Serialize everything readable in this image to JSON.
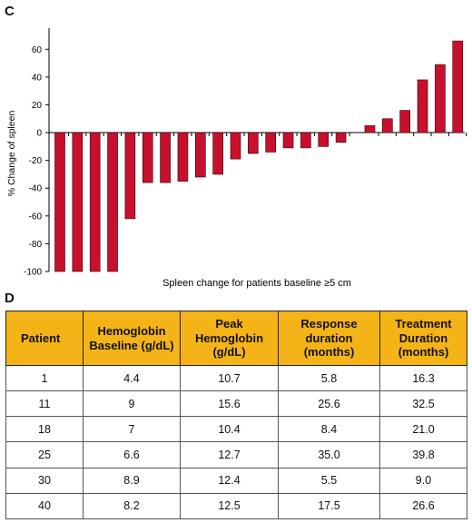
{
  "panel_c": {
    "letter": "C"
  },
  "panel_d": {
    "letter": "D",
    "columns": [
      "Patient",
      "Hemoglobin Baseline (g/dL)",
      "Peak Hemoglobin (g/dL)",
      "Response duration (months)",
      "Treatment Duration (months)"
    ],
    "rows": [
      [
        "1",
        "4.4",
        "10.7",
        "5.8",
        "16.3"
      ],
      [
        "11",
        "9",
        "15.6",
        "25.6",
        "32.5"
      ],
      [
        "18",
        "7",
        "10.4",
        "8.4",
        "21.0"
      ],
      [
        "25",
        "6.6",
        "12.7",
        "35.0",
        "39.8"
      ],
      [
        "30",
        "8.9",
        "12.4",
        "5.5",
        "9.0"
      ],
      [
        "40",
        "8.2",
        "12.5",
        "17.5",
        "26.6"
      ]
    ]
  },
  "chart_data": {
    "type": "bar",
    "xlabel": "Spleen change for patients baseline ≥5 cm",
    "ylabel": "% Change of spleen",
    "ylim": [
      -100,
      70
    ],
    "yticks": [
      -100,
      -80,
      -60,
      -40,
      -20,
      0,
      20,
      40,
      60
    ],
    "grid": false,
    "bar_color": "#c8102e",
    "values": [
      -100,
      -100,
      -100,
      -100,
      -62,
      -36,
      -36,
      -35,
      -32,
      -30,
      -19,
      -15,
      -14,
      -11,
      -11,
      -10,
      -7,
      5,
      10,
      16,
      38,
      49,
      66
    ]
  }
}
